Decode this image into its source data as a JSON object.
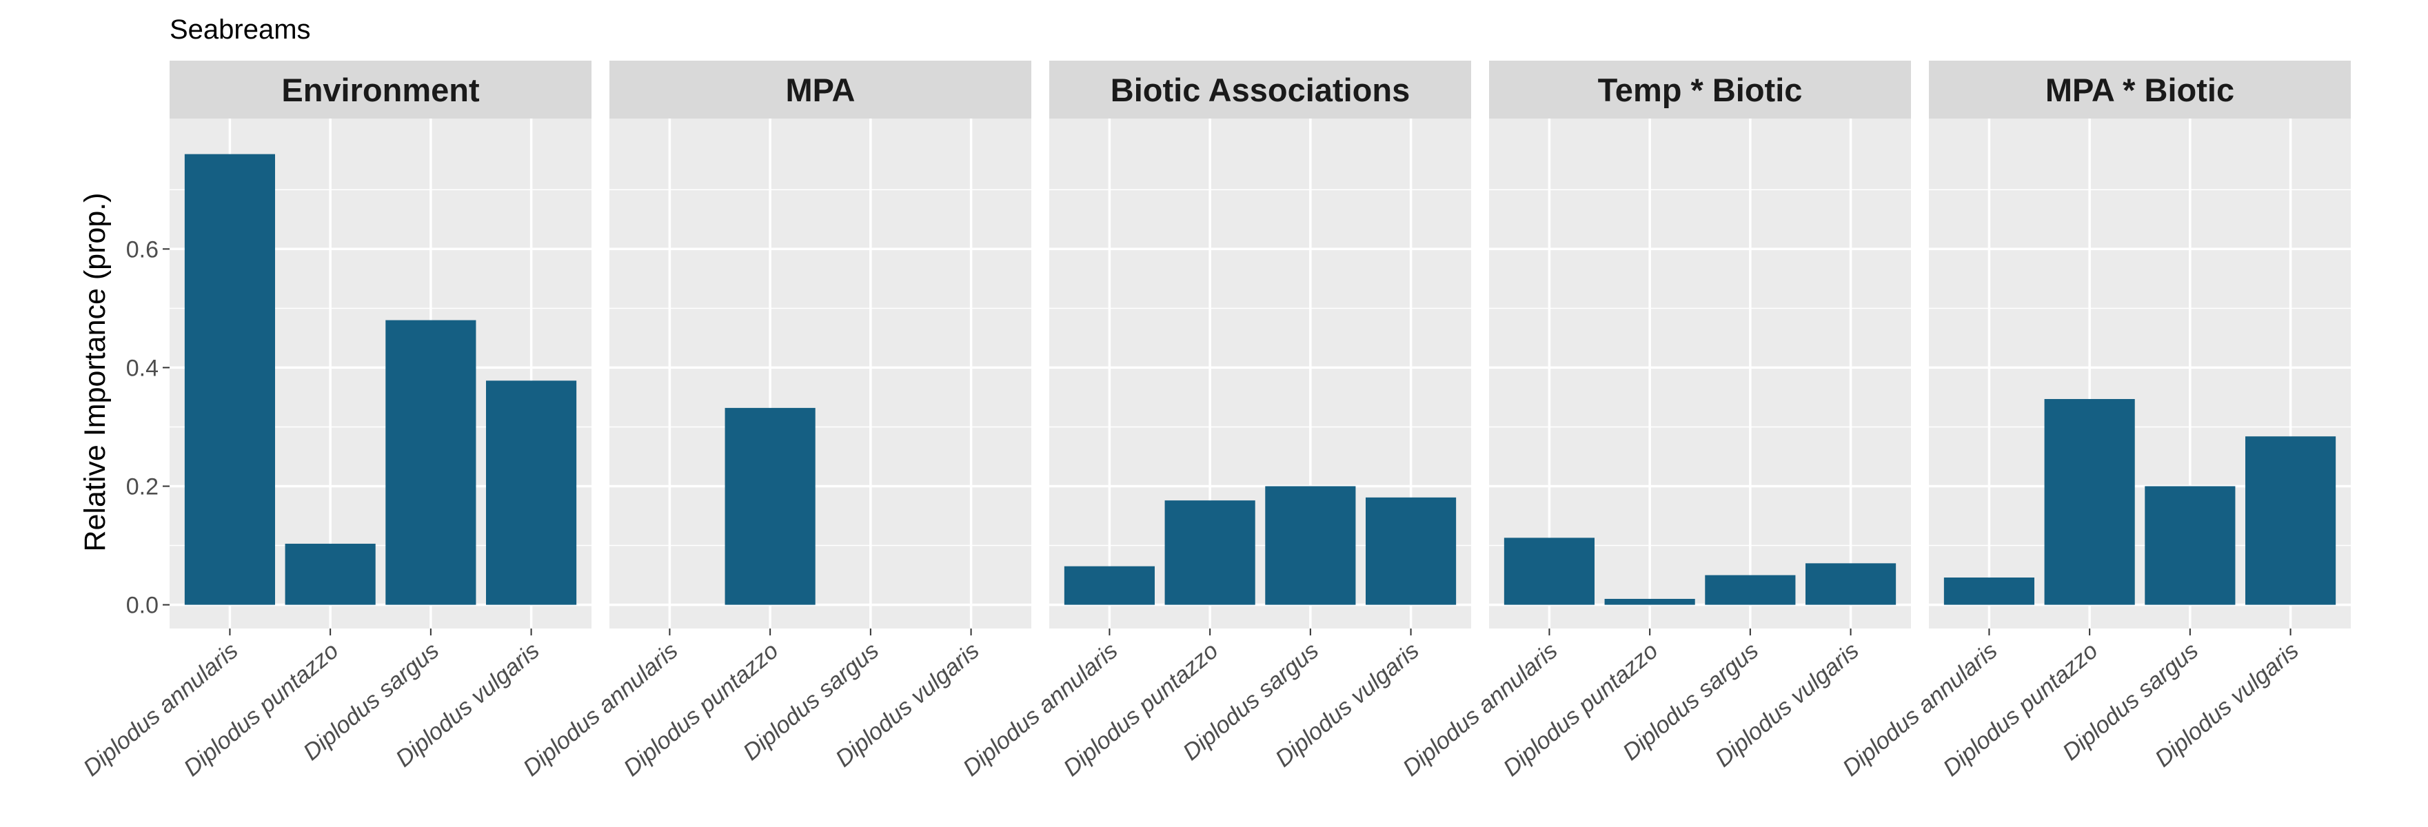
{
  "chart_data": {
    "type": "bar",
    "title": "Seabreams",
    "ylabel": "Relative Importance (prop.)",
    "xlabel": "",
    "ylim": [
      -0.04,
      0.82
    ],
    "yticks": [
      0.0,
      0.2,
      0.4,
      0.6
    ],
    "ytick_labels": [
      "0.0",
      "0.2",
      "0.4",
      "0.6"
    ],
    "categories": [
      "Diplodus annularis",
      "Diplodus puntazzo",
      "Diplodus sargus",
      "Diplodus vulgaris"
    ],
    "bar_color": "#155f83",
    "panel_background": "#ebebeb",
    "strip_background": "#d9d9d9",
    "grid": true,
    "panels": [
      {
        "name": "Environment",
        "values": [
          0.76,
          0.103,
          0.48,
          0.378
        ]
      },
      {
        "name": "MPA",
        "values": [
          0.0,
          0.332,
          0.0,
          0.0
        ]
      },
      {
        "name": "Biotic Associations",
        "values": [
          0.065,
          0.176,
          0.2,
          0.181
        ]
      },
      {
        "name": "Temp * Biotic",
        "values": [
          0.113,
          0.01,
          0.05,
          0.07
        ]
      },
      {
        "name": "MPA * Biotic",
        "values": [
          0.046,
          0.347,
          0.2,
          0.284
        ]
      }
    ]
  }
}
